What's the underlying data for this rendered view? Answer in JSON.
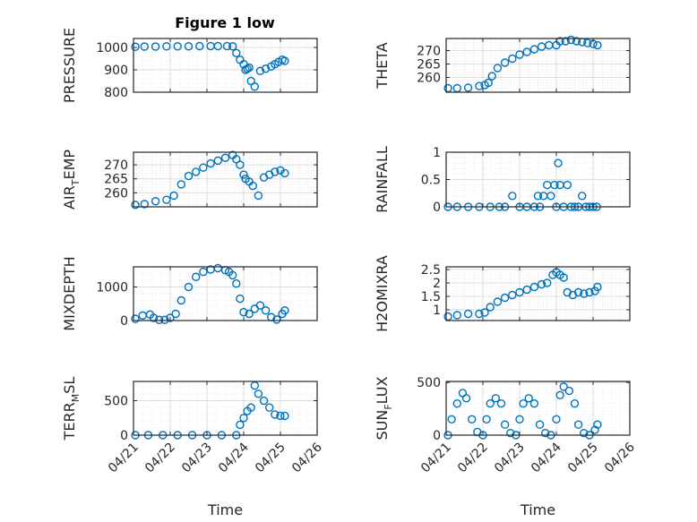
{
  "figure_title": "Figure 1 low",
  "chart_data": [
    {
      "type": "scatter",
      "id": "pressure",
      "ylabel": "PRESSURE",
      "ylim": [
        800,
        1040
      ],
      "yticks": [
        "800",
        "900",
        "1000"
      ],
      "xlim": [
        0,
        5
      ],
      "xticks": [
        "04/21",
        "04/22",
        "04/23",
        "04/24",
        "04/25",
        "04/26"
      ],
      "grid": true,
      "x": [
        0.05,
        0.3,
        0.6,
        0.9,
        1.2,
        1.5,
        1.8,
        2.1,
        2.3,
        2.55,
        2.7,
        2.8,
        2.9,
        3.0,
        3.05,
        3.1,
        3.15,
        3.2,
        3.3,
        3.45,
        3.6,
        3.75,
        3.85,
        3.95,
        4.05,
        4.12
      ],
      "y": [
        1003,
        1004,
        1004,
        1005,
        1005,
        1005,
        1006,
        1006,
        1006,
        1006,
        1005,
        975,
        945,
        925,
        900,
        905,
        910,
        850,
        825,
        895,
        905,
        915,
        925,
        935,
        945,
        940
      ]
    },
    {
      "type": "scatter",
      "id": "theta",
      "ylabel": "THETA",
      "ylim": [
        254.5,
        274.5
      ],
      "yticks": [
        "260",
        "265",
        "270"
      ],
      "xlim": [
        0,
        5
      ],
      "xticks": [
        "04/21",
        "04/22",
        "04/23",
        "04/24",
        "04/25",
        "04/26"
      ],
      "grid": true,
      "x": [
        0.05,
        0.3,
        0.6,
        0.9,
        1.05,
        1.15,
        1.25,
        1.4,
        1.6,
        1.8,
        2.0,
        2.2,
        2.4,
        2.6,
        2.8,
        3.0,
        3.1,
        3.25,
        3.4,
        3.55,
        3.7,
        3.85,
        4.0,
        4.12
      ],
      "y": [
        256,
        256,
        256.2,
        256.8,
        257.2,
        258,
        260.5,
        263.5,
        265.5,
        267,
        268.5,
        269.5,
        270.5,
        271.5,
        272,
        272,
        273.5,
        273.5,
        274,
        273.5,
        273.2,
        272.8,
        272.5,
        272
      ]
    },
    {
      "type": "scatter",
      "id": "airtemp",
      "ylabel": "AIR",
      "ylabel_subscript": "T",
      "ylabel_suffix": "EMP",
      "ylim": [
        255,
        274.5
      ],
      "yticks": [
        "260",
        "265",
        "270"
      ],
      "xlim": [
        0,
        5
      ],
      "xticks": [
        "04/21",
        "04/22",
        "04/23",
        "04/24",
        "04/25",
        "04/26"
      ],
      "grid": true,
      "x": [
        0.05,
        0.3,
        0.6,
        0.9,
        1.1,
        1.3,
        1.5,
        1.7,
        1.9,
        2.1,
        2.3,
        2.5,
        2.7,
        2.8,
        2.9,
        3.0,
        3.05,
        3.15,
        3.25,
        3.4,
        3.55,
        3.7,
        3.85,
        4.0,
        4.12
      ],
      "y": [
        255.7,
        256,
        257,
        257.5,
        259,
        263,
        266,
        267.5,
        269,
        270.5,
        271.5,
        272.5,
        273.5,
        272,
        270,
        266.5,
        265,
        264,
        262.5,
        259,
        265.5,
        266.5,
        267.5,
        268,
        267
      ]
    },
    {
      "type": "scatter",
      "id": "rainfall",
      "ylabel": "RAINFALL",
      "ylim": [
        0,
        1
      ],
      "yticks": [
        "0",
        "0.5",
        "1"
      ],
      "xlim": [
        0,
        5
      ],
      "xticks": [
        "04/21",
        "04/22",
        "04/23",
        "04/24",
        "04/25",
        "04/26"
      ],
      "grid": true,
      "x": [
        0.05,
        0.3,
        0.6,
        0.9,
        1.2,
        1.45,
        1.6,
        1.8,
        2.0,
        2.2,
        2.4,
        2.5,
        2.55,
        2.65,
        2.75,
        2.85,
        2.95,
        3.0,
        3.05,
        3.1,
        3.2,
        3.3,
        3.4,
        3.5,
        3.6,
        3.7,
        3.8,
        3.9,
        4.0,
        4.1
      ],
      "y": [
        0,
        0,
        0,
        0,
        0,
        0,
        0,
        0.2,
        0,
        0,
        0,
        0.2,
        0,
        0.2,
        0.4,
        0.2,
        0.4,
        0,
        0.8,
        0.4,
        0,
        0.4,
        0,
        0,
        0,
        0.2,
        0,
        0,
        0,
        0
      ]
    },
    {
      "type": "scatter",
      "id": "mixdepth",
      "ylabel": "MIXDEPTH",
      "ylim": [
        0,
        1600
      ],
      "yticks": [
        "0",
        "1000"
      ],
      "xlim": [
        0,
        5
      ],
      "xticks": [
        "04/21",
        "04/22",
        "04/23",
        "04/24",
        "04/25",
        "04/26"
      ],
      "grid": true,
      "x": [
        0.05,
        0.25,
        0.45,
        0.55,
        0.7,
        0.85,
        1.0,
        1.15,
        1.3,
        1.5,
        1.7,
        1.9,
        2.1,
        2.3,
        2.5,
        2.6,
        2.7,
        2.8,
        2.9,
        3.0,
        3.15,
        3.3,
        3.45,
        3.6,
        3.75,
        3.9,
        4.05,
        4.12
      ],
      "y": [
        50,
        150,
        180,
        80,
        20,
        20,
        80,
        200,
        600,
        1000,
        1300,
        1450,
        1520,
        1560,
        1500,
        1450,
        1350,
        1100,
        650,
        250,
        200,
        350,
        450,
        300,
        100,
        30,
        200,
        300
      ]
    },
    {
      "type": "scatter",
      "id": "h2omixra",
      "ylabel": "H2OMIXRA",
      "ylim": [
        0.6,
        2.6
      ],
      "yticks": [
        "1",
        "1.5",
        "2",
        "2.5"
      ],
      "xlim": [
        0,
        5
      ],
      "xticks": [
        "04/21",
        "04/22",
        "04/23",
        "04/24",
        "04/25",
        "04/26"
      ],
      "grid": true,
      "x": [
        0.05,
        0.3,
        0.6,
        0.9,
        1.05,
        1.2,
        1.4,
        1.6,
        1.8,
        2.0,
        2.2,
        2.4,
        2.6,
        2.75,
        2.9,
        3.0,
        3.1,
        3.2,
        3.3,
        3.45,
        3.6,
        3.75,
        3.9,
        4.05,
        4.12
      ],
      "y": [
        0.75,
        0.8,
        0.85,
        0.85,
        0.9,
        1.1,
        1.3,
        1.45,
        1.55,
        1.65,
        1.75,
        1.85,
        1.95,
        2.0,
        2.3,
        2.4,
        2.3,
        2.2,
        1.65,
        1.55,
        1.65,
        1.6,
        1.65,
        1.7,
        1.85
      ]
    },
    {
      "type": "scatter",
      "id": "terrmsl",
      "ylabel": "TERR",
      "ylabel_subscript": "M",
      "ylabel_suffix": "SL",
      "ylim": [
        0,
        780
      ],
      "yticks": [
        "0",
        "500"
      ],
      "xlim": [
        0,
        5
      ],
      "xticks": [
        "04/21",
        "04/22",
        "04/23",
        "04/24",
        "04/25",
        "04/26"
      ],
      "grid": true,
      "x": [
        0.05,
        0.4,
        0.8,
        1.2,
        1.6,
        2.0,
        2.4,
        2.8,
        2.9,
        3.0,
        3.1,
        3.2,
        3.3,
        3.4,
        3.55,
        3.7,
        3.85,
        4.0,
        4.12
      ],
      "y": [
        0,
        0,
        0,
        0,
        0,
        0,
        0,
        0,
        150,
        250,
        350,
        400,
        720,
        600,
        500,
        400,
        300,
        280,
        280
      ]
    },
    {
      "type": "scatter",
      "id": "sunflux",
      "ylabel": "SUN",
      "ylabel_subscript": "F",
      "ylabel_suffix": "LUX",
      "ylim": [
        0,
        510
      ],
      "yticks": [
        "0",
        "500"
      ],
      "xlim": [
        0,
        5
      ],
      "xticks": [
        "04/21",
        "04/22",
        "04/23",
        "04/24",
        "04/25",
        "04/26"
      ],
      "grid": true,
      "x": [
        0.05,
        0.15,
        0.3,
        0.45,
        0.55,
        0.7,
        0.85,
        1.0,
        1.1,
        1.2,
        1.35,
        1.5,
        1.6,
        1.75,
        1.9,
        2.0,
        2.1,
        2.25,
        2.4,
        2.55,
        2.7,
        2.85,
        3.0,
        3.1,
        3.2,
        3.35,
        3.5,
        3.6,
        3.75,
        3.9,
        4.05,
        4.12
      ],
      "y": [
        0,
        150,
        300,
        400,
        350,
        150,
        30,
        0,
        150,
        300,
        350,
        300,
        100,
        20,
        0,
        150,
        300,
        350,
        300,
        100,
        20,
        0,
        150,
        380,
        460,
        420,
        300,
        100,
        20,
        0,
        50,
        100
      ]
    }
  ],
  "xlabel": "Time"
}
